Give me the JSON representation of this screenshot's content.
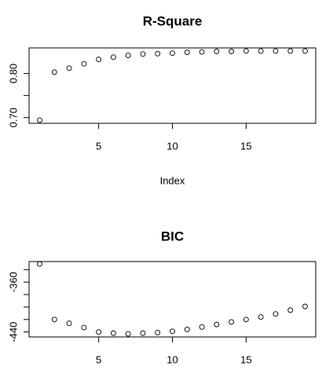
{
  "chart_data": [
    {
      "type": "scatter",
      "title": "R-Square",
      "xlabel": "Index",
      "ylabel": "",
      "x": [
        1,
        2,
        3,
        4,
        5,
        6,
        7,
        8,
        9,
        10,
        11,
        12,
        13,
        14,
        15,
        16,
        17,
        18,
        19
      ],
      "y": [
        0.694,
        0.803,
        0.812,
        0.822,
        0.832,
        0.837,
        0.841,
        0.844,
        0.845,
        0.846,
        0.848,
        0.849,
        0.85,
        0.85,
        0.851,
        0.851,
        0.851,
        0.851,
        0.851
      ],
      "xlim": [
        0.28,
        19.72
      ],
      "ylim": [
        0.687,
        0.858
      ],
      "xticks": [
        5,
        10,
        15
      ],
      "xtick_labels": [
        "5",
        "10",
        "15"
      ],
      "yticks": [
        0.7,
        0.75,
        0.8
      ],
      "ytick_labels": [
        "0.70",
        "",
        "0.80"
      ],
      "grid": false,
      "legend": "none"
    },
    {
      "type": "scatter",
      "title": "BIC",
      "xlabel": "",
      "ylabel": "",
      "x": [
        1,
        2,
        3,
        4,
        5,
        6,
        7,
        8,
        9,
        10,
        11,
        12,
        13,
        14,
        15,
        16,
        17,
        18,
        19
      ],
      "y": [
        -331,
        -420,
        -426,
        -433,
        -440,
        -442,
        -443,
        -442,
        -441,
        -439,
        -436,
        -432,
        -428,
        -424,
        -420,
        -416,
        -411,
        -405,
        -399
      ],
      "xlim": [
        0.28,
        19.72
      ],
      "ylim": [
        -448,
        -327
      ],
      "xticks": [
        5,
        10,
        15
      ],
      "xtick_labels": [
        "5",
        "10",
        "15"
      ],
      "yticks": [
        -440,
        -420,
        -400,
        -380,
        -360,
        -340
      ],
      "ytick_labels": [
        "-440",
        "",
        "",
        "",
        "-360",
        ""
      ],
      "grid": false,
      "legend": "none"
    }
  ]
}
